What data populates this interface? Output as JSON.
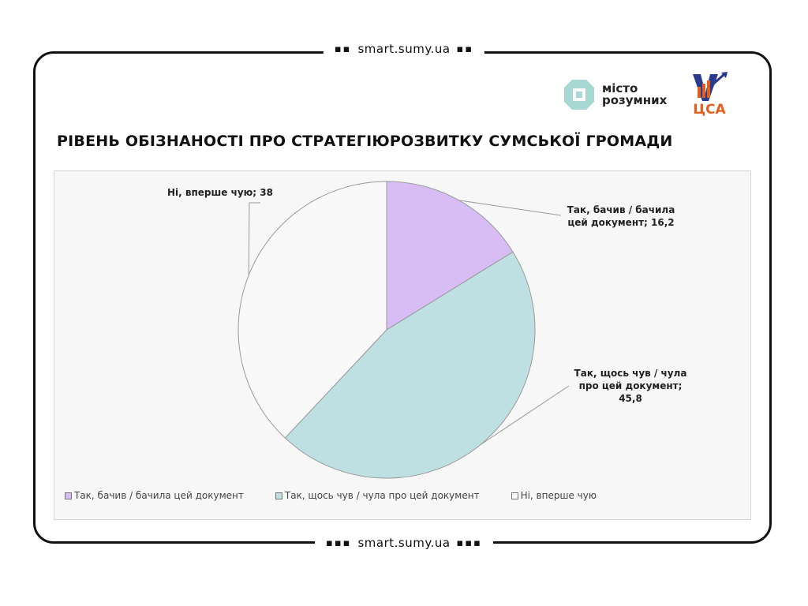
{
  "header": {
    "site": "smart.sumy.ua",
    "dots_left": "▪▪",
    "dots_right": "▪▪"
  },
  "footer": {
    "site": "smart.sumy.ua",
    "dots_left": "▪▪▪",
    "dots_right": "▪▪▪"
  },
  "logos": {
    "misto_line1": "місто",
    "misto_line2": "розумних",
    "tsa_text": "ЦСА"
  },
  "title": "РІВЕНЬ ОБІЗНАНОСТІ ПРО СТРАТЕГІЮРОЗВИТКУ СУМСЬКОЇ ГРОМАДИ",
  "chart_data": {
    "type": "pie",
    "title": "РІВЕНЬ ОБІЗНАНОСТІ ПРО СТРАТЕГІЮРОЗВИТКУ СУМСЬКОЇ ГРОМАДИ",
    "categories": [
      "Так, бачив / бачила цей документ",
      "Так, щось чув / чула про цей документ",
      "Ні, вперше чую"
    ],
    "values": [
      16.2,
      45.8,
      38
    ],
    "colors": [
      "#d8bdf4",
      "#bfe0e3",
      "#f9f9f9"
    ],
    "data_labels": [
      [
        "Так, бачив / бачила",
        "цей документ;  16,2"
      ],
      [
        "Так, щось чув / чула",
        "про цей документ;",
        "45,8"
      ],
      [
        "Ні, вперше чую; 38"
      ]
    ],
    "legend": [
      "Так, бачив  / бачила цей документ",
      "Так, щось чув  / чула про цей документ",
      "Ні, вперше чую"
    ],
    "legend_position": "bottom"
  }
}
